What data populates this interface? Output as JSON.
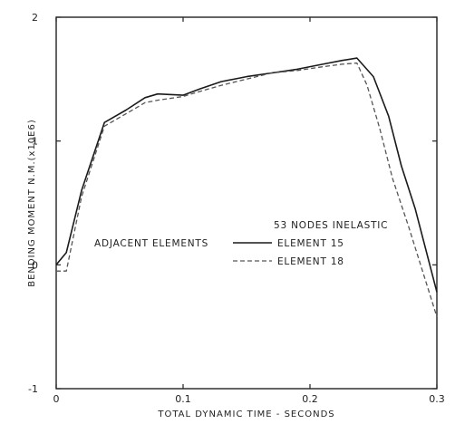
{
  "chart_data": {
    "type": "line",
    "xlabel": "TOTAL DYNAMIC TIME - SECONDS",
    "ylabel": "BENDING MOMENT N.M.(x10E6)",
    "xlim": [
      0,
      0.3
    ],
    "ylim": [
      -1,
      2
    ],
    "xticks": [
      0,
      0.1,
      0.2,
      0.3
    ],
    "xtick_labels": [
      "0",
      "0.1",
      "0.2",
      "0.3"
    ],
    "yticks": [
      -1,
      0,
      1,
      2
    ],
    "ytick_labels": [
      "-1",
      "0",
      "1",
      "2"
    ],
    "grid": false,
    "legend_position": "center-right",
    "annotations": {
      "header": "53 NODES INELASTIC",
      "group": "ADJACENT ELEMENTS"
    },
    "series": [
      {
        "name": "ELEMENT 15",
        "style": "solid",
        "color": "#1a1a1a",
        "x": [
          0,
          0.008,
          0.02,
          0.038,
          0.055,
          0.07,
          0.08,
          0.1,
          0.113,
          0.13,
          0.15,
          0.17,
          0.19,
          0.21,
          0.225,
          0.237,
          0.25,
          0.262,
          0.272,
          0.283,
          0.3
        ],
        "y": [
          0,
          0.1,
          0.6,
          1.15,
          1.25,
          1.35,
          1.38,
          1.37,
          1.42,
          1.48,
          1.52,
          1.55,
          1.58,
          1.62,
          1.65,
          1.67,
          1.52,
          1.2,
          0.8,
          0.45,
          -0.22
        ]
      },
      {
        "name": "ELEMENT 18",
        "style": "dashed",
        "color": "#555555",
        "x": [
          0,
          0.008,
          0.02,
          0.038,
          0.055,
          0.07,
          0.08,
          0.1,
          0.113,
          0.13,
          0.15,
          0.17,
          0.19,
          0.21,
          0.225,
          0.237,
          0.245,
          0.255,
          0.265,
          0.278,
          0.3
        ],
        "y": [
          -0.05,
          -0.05,
          0.55,
          1.12,
          1.22,
          1.31,
          1.33,
          1.36,
          1.4,
          1.45,
          1.5,
          1.55,
          1.57,
          1.6,
          1.62,
          1.63,
          1.45,
          1.1,
          0.7,
          0.3,
          -0.42
        ]
      }
    ]
  }
}
